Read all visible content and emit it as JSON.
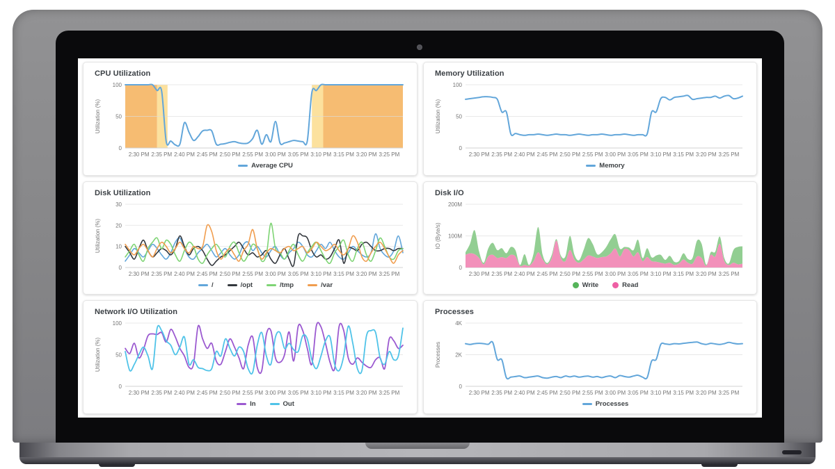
{
  "x_axis_labels": [
    "2:30 PM",
    "2:35 PM",
    "2:40 PM",
    "2:45 PM",
    "2:50 PM",
    "2:55 PM",
    "3:00 PM",
    "3:05 PM",
    "3:10 PM",
    "3:15 PM",
    "3:20 PM",
    "3:25 PM"
  ],
  "theme": {
    "line_blue": "#62a6da",
    "band_orange": "#f6bc72",
    "band_yellow": "#fce19e",
    "grid_gray": "#e8e8e8",
    "tick_text": "#757575",
    "title_text": "#3a3f44"
  },
  "chart_data": [
    {
      "title": "CPU Utilization",
      "type": "line",
      "y_axis_title": "Utilization (%)",
      "y_ticks": [
        0,
        50,
        100
      ],
      "y_tick_labels": [
        "0",
        "50",
        "100"
      ],
      "x_domain": [
        0,
        61
      ],
      "x_tick_start_min": 3,
      "x_tick_step_min": 5,
      "line_width": 2,
      "annotation_bands": [
        {
          "x_from": 0,
          "x_to": 7,
          "color": "#f6bc72"
        },
        {
          "x_from": 7,
          "x_to": 9.3,
          "color": "#fce19e"
        },
        {
          "x_from": 41,
          "x_to": 43.5,
          "color": "#fce19e"
        },
        {
          "x_from": 43.5,
          "x_to": 61,
          "color": "#f6bc72"
        }
      ],
      "series": [
        {
          "name": "Average CPU",
          "color": "#62a6da",
          "marker": "line",
          "values": [
            100,
            100,
            100,
            100,
            100,
            100,
            100,
            91,
            90,
            10,
            11,
            5,
            6,
            40,
            25,
            12,
            18,
            27,
            28,
            27,
            6,
            6,
            7,
            9,
            10,
            8,
            7,
            8,
            15,
            28,
            6,
            21,
            10,
            42,
            8,
            8,
            10,
            12,
            11,
            10,
            11,
            88,
            91,
            100,
            100,
            100,
            100,
            100,
            100,
            100,
            100,
            100,
            100,
            100,
            100,
            100,
            100,
            100,
            100,
            100,
            100,
            100
          ]
        }
      ]
    },
    {
      "title": "Memory Utilization",
      "type": "line",
      "y_axis_title": "Utilization (%)",
      "y_ticks": [
        0,
        50,
        100
      ],
      "y_tick_labels": [
        "0",
        "50",
        "100"
      ],
      "x_domain": [
        0,
        61
      ],
      "x_tick_start_min": 3,
      "x_tick_step_min": 5,
      "line_width": 2,
      "series": [
        {
          "name": "Memory",
          "color": "#62a6da",
          "marker": "line",
          "values": [
            77,
            78,
            79,
            80,
            81,
            81,
            80,
            77,
            57,
            57,
            22,
            23,
            21,
            20,
            21,
            21,
            22,
            21,
            20,
            21,
            22,
            21,
            21,
            20,
            21,
            22,
            21,
            20,
            21,
            21,
            22,
            21,
            20,
            21,
            21,
            22,
            21,
            20,
            21,
            21,
            22,
            57,
            57,
            78,
            80,
            76,
            80,
            81,
            82,
            83,
            77,
            78,
            79,
            80,
            80,
            82,
            79,
            82,
            83,
            78,
            79,
            82
          ]
        }
      ]
    },
    {
      "title": "Disk Utilization",
      "type": "line",
      "y_axis_title": "Utilization (%)",
      "y_ticks": [
        0,
        10,
        20,
        30
      ],
      "y_tick_labels": [
        "0",
        "10",
        "20",
        "30"
      ],
      "x_domain": [
        0,
        61
      ],
      "x_tick_start_min": 3,
      "x_tick_step_min": 5,
      "line_width": 1.6,
      "series": [
        {
          "name": "/",
          "color": "#62a6da",
          "marker": "line",
          "values": [
            3,
            6,
            9,
            7,
            5,
            8,
            11,
            9,
            6,
            4,
            7,
            12,
            14,
            9,
            5,
            4,
            7,
            9,
            11,
            8,
            5,
            7,
            9,
            6,
            4,
            6,
            11,
            12,
            8,
            10,
            7,
            5,
            8,
            10,
            6,
            4,
            7,
            9,
            12,
            10,
            6,
            5,
            8,
            11,
            9,
            12,
            8,
            5,
            4,
            7,
            10,
            8,
            6,
            5,
            7,
            16,
            9,
            6,
            5,
            8,
            15,
            7
          ]
        },
        {
          "name": "/opt",
          "color": "#33373d",
          "marker": "line",
          "values": [
            10,
            7,
            4,
            9,
            13,
            8,
            5,
            7,
            9,
            8,
            6,
            9,
            15,
            10,
            6,
            9,
            10,
            8,
            4,
            1,
            3,
            5,
            6,
            8,
            10,
            12,
            9,
            6,
            7,
            5,
            6,
            8,
            4,
            2,
            6,
            9,
            4,
            1,
            15,
            15,
            14,
            8,
            5,
            6,
            4,
            5,
            9,
            13,
            2,
            9,
            9,
            8,
            11,
            12,
            10,
            8,
            8,
            9,
            9,
            8,
            9,
            9
          ]
        },
        {
          "name": "/tmp",
          "color": "#7ed474",
          "marker": "line",
          "values": [
            5,
            8,
            11,
            6,
            3,
            9,
            12,
            14,
            9,
            13,
            11,
            6,
            3,
            8,
            12,
            10,
            4,
            2,
            6,
            9,
            11,
            8,
            5,
            10,
            12,
            7,
            3,
            6,
            11,
            9,
            3,
            6,
            21,
            9,
            7,
            4,
            8,
            11,
            6,
            3,
            7,
            10,
            12,
            8,
            4,
            2,
            7,
            10,
            13,
            6,
            3,
            9,
            12,
            6,
            3,
            8,
            14,
            10,
            5,
            4,
            8,
            9
          ]
        },
        {
          "name": "/var",
          "color": "#f09d4e",
          "marker": "line",
          "values": [
            11,
            8,
            6,
            9,
            11,
            8,
            5,
            9,
            12,
            10,
            7,
            9,
            12,
            9,
            7,
            10,
            9,
            10,
            20,
            17,
            8,
            4,
            7,
            9,
            6,
            3,
            8,
            11,
            18,
            9,
            4,
            7,
            9,
            8,
            7,
            9,
            10,
            8,
            9,
            10,
            7,
            9,
            12,
            10,
            8,
            9,
            11,
            8,
            6,
            9,
            15,
            12,
            5,
            3,
            7,
            10,
            12,
            9,
            5,
            2,
            6,
            8
          ]
        }
      ]
    },
    {
      "title": "Disk I/O",
      "type": "stacked_area",
      "y_axis_title": "IO (Byte/s)",
      "y_ticks": [
        0,
        100,
        200
      ],
      "y_tick_labels": [
        "0",
        "100M",
        "200M"
      ],
      "x_domain": [
        0,
        61
      ],
      "x_tick_start_min": 3,
      "x_tick_step_min": 5,
      "line_width": 1,
      "series": [
        {
          "name": "Write",
          "color": "#55b45a",
          "fill": "#92ce92",
          "marker": "dot",
          "stack": "top",
          "values": [
            8,
            30,
            76,
            20,
            5,
            25,
            38,
            25,
            28,
            15,
            25,
            20,
            3,
            34,
            3,
            25,
            80,
            15,
            4,
            10,
            5,
            8,
            15,
            45,
            15,
            8,
            30,
            55,
            40,
            12,
            15,
            30,
            45,
            45,
            25,
            7,
            8,
            20,
            40,
            10,
            28,
            12,
            20,
            25,
            12,
            22,
            10,
            8,
            20,
            12,
            18,
            50,
            45,
            4,
            8,
            15,
            23,
            10,
            5,
            40,
            55,
            55
          ]
        },
        {
          "name": "Read",
          "color": "#ee5fa4",
          "fill": "#f290ba",
          "marker": "dot",
          "stack": "bottom",
          "values": [
            40,
            45,
            42,
            30,
            10,
            35,
            40,
            30,
            33,
            30,
            40,
            35,
            5,
            8,
            5,
            20,
            48,
            25,
            10,
            30,
            85,
            30,
            20,
            55,
            25,
            15,
            25,
            38,
            35,
            30,
            33,
            35,
            45,
            60,
            35,
            58,
            55,
            35,
            48,
            20,
            33,
            20,
            18,
            15,
            12,
            15,
            8,
            12,
            25,
            15,
            12,
            35,
            30,
            5,
            40,
            35,
            75,
            20,
            8,
            15,
            10,
            12
          ]
        }
      ]
    },
    {
      "title": "Network I/O Utilization",
      "type": "line",
      "y_axis_title": "Utilization (%)",
      "y_ticks": [
        0,
        50,
        100
      ],
      "y_tick_labels": [
        "0",
        "50",
        "100"
      ],
      "x_domain": [
        0,
        61
      ],
      "x_tick_start_min": 3,
      "x_tick_step_min": 5,
      "line_width": 1.8,
      "series": [
        {
          "name": "In",
          "color": "#9b59d0",
          "marker": "line",
          "values": [
            60,
            52,
            68,
            45,
            58,
            80,
            83,
            82,
            85,
            70,
            90,
            78,
            60,
            48,
            30,
            35,
            95,
            75,
            60,
            68,
            40,
            35,
            55,
            75,
            62,
            45,
            28,
            65,
            78,
            30,
            25,
            82,
            88,
            45,
            38,
            50,
            86,
            40,
            95,
            88,
            60,
            35,
            96,
            94,
            68,
            38,
            28,
            95,
            88,
            45,
            35,
            45,
            38,
            32,
            30,
            42,
            45,
            28,
            75,
            72,
            60,
            65
          ]
        },
        {
          "name": "Out",
          "color": "#4fc3e8",
          "marker": "line",
          "values": [
            55,
            25,
            35,
            50,
            62,
            48,
            28,
            92,
            88,
            72,
            65,
            50,
            62,
            78,
            35,
            42,
            30,
            28,
            25,
            28,
            55,
            48,
            75,
            60,
            48,
            62,
            55,
            28,
            22,
            65,
            85,
            48,
            35,
            78,
            85,
            60,
            68,
            58,
            55,
            80,
            75,
            42,
            28,
            48,
            72,
            78,
            35,
            25,
            48,
            95,
            68,
            28,
            25,
            80,
            88,
            85,
            45,
            35,
            55,
            42,
            48,
            92
          ]
        }
      ]
    },
    {
      "title": "Processes",
      "type": "line",
      "y_axis_title": "Processes",
      "y_ticks": [
        0,
        2,
        4
      ],
      "y_tick_labels": [
        "0",
        "2K",
        "4K"
      ],
      "x_domain": [
        0,
        61
      ],
      "x_tick_start_min": 3,
      "x_tick_step_min": 5,
      "line_width": 2,
      "series": [
        {
          "name": "Processes",
          "color": "#62a6da",
          "marker": "line",
          "values": [
            2.7,
            2.65,
            2.7,
            2.72,
            2.7,
            2.66,
            2.78,
            1.7,
            1.68,
            0.55,
            0.58,
            0.62,
            0.65,
            0.55,
            0.58,
            0.62,
            0.65,
            0.55,
            0.52,
            0.58,
            0.62,
            0.55,
            0.65,
            0.6,
            0.65,
            0.58,
            0.62,
            0.65,
            0.58,
            0.62,
            0.55,
            0.62,
            0.65,
            0.55,
            0.68,
            0.62,
            0.58,
            0.65,
            0.7,
            0.58,
            0.55,
            1.6,
            1.7,
            2.65,
            2.68,
            2.65,
            2.7,
            2.68,
            2.72,
            2.75,
            2.78,
            2.8,
            2.7,
            2.65,
            2.72,
            2.68,
            2.65,
            2.7,
            2.78,
            2.72,
            2.68,
            2.7
          ]
        }
      ]
    }
  ]
}
